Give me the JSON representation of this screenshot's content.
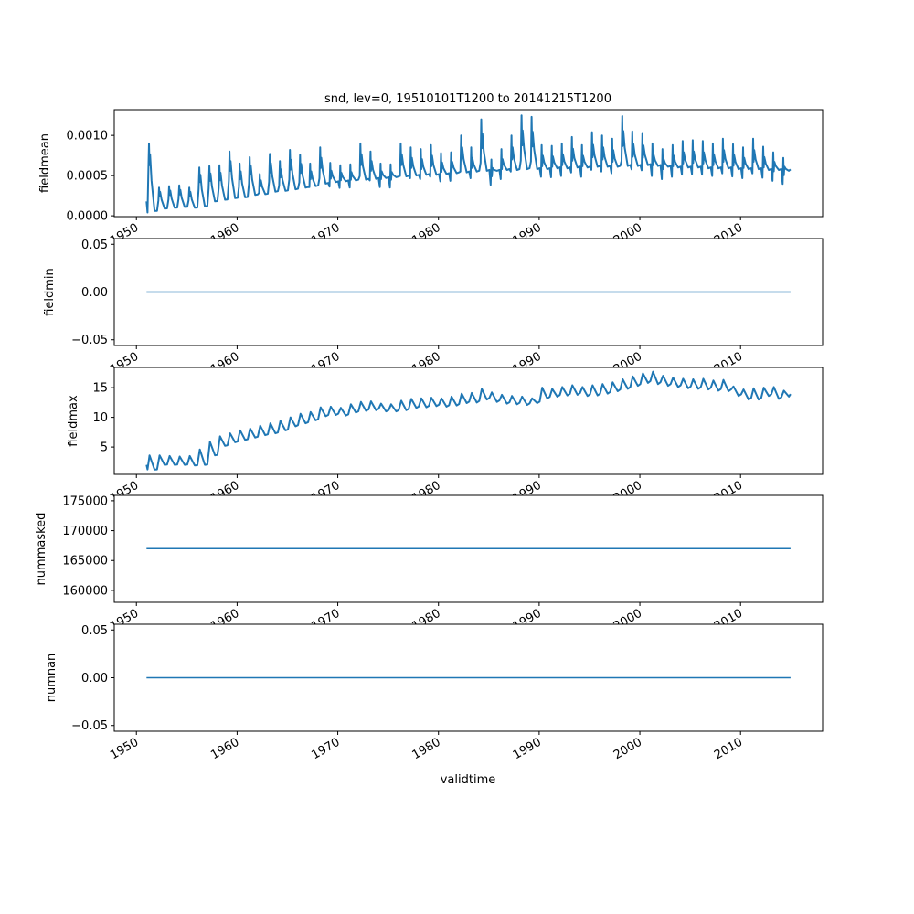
{
  "chart_data": {
    "type": "line",
    "title": "snd, lev=0, 19510101T1200 to 20141215T1200",
    "xlabel": "validtime",
    "x_range": [
      1951.0,
      2014.96
    ],
    "xlim": [
      1947.8,
      2018.15
    ],
    "xticks": [
      1950,
      1960,
      1970,
      1980,
      1990,
      2000,
      2010
    ],
    "line_color": "#1f77b4",
    "panels": [
      {
        "ylabel": "fieldmean",
        "ylim": [
          -1e-05,
          0.00132
        ],
        "yticks": [
          0.0,
          0.0005,
          0.001
        ],
        "ytick_labels": [
          "0.0000",
          "0.0005",
          "0.0010"
        ],
        "years": [
          1951,
          1952,
          1953,
          1954,
          1955,
          1956,
          1957,
          1958,
          1959,
          1960,
          1961,
          1962,
          1963,
          1964,
          1965,
          1966,
          1967,
          1968,
          1969,
          1970,
          1971,
          1972,
          1973,
          1974,
          1975,
          1976,
          1977,
          1978,
          1979,
          1980,
          1981,
          1982,
          1983,
          1984,
          1985,
          1986,
          1987,
          1988,
          1989,
          1990,
          1991,
          1992,
          1993,
          1994,
          1995,
          1996,
          1997,
          1998,
          1999,
          2000,
          2001,
          2002,
          2003,
          2004,
          2005,
          2006,
          2007,
          2008,
          2009,
          2010,
          2011,
          2012,
          2013,
          2014
        ],
        "peak": [
          0.0009,
          0.00035,
          0.00037,
          0.00038,
          0.00035,
          0.0006,
          0.00062,
          0.00063,
          0.0008,
          0.00065,
          0.00073,
          0.00052,
          0.00077,
          0.00068,
          0.00082,
          0.00076,
          0.00065,
          0.00085,
          0.00066,
          0.00063,
          0.00064,
          0.0009,
          0.0008,
          0.00065,
          0.00064,
          0.0009,
          0.00085,
          0.00083,
          0.00088,
          0.00078,
          0.00079,
          0.001,
          0.00085,
          0.0012,
          0.0007,
          0.00083,
          0.001,
          0.00125,
          0.00123,
          0.00088,
          0.00087,
          0.0009,
          0.00098,
          0.00088,
          0.00104,
          0.001,
          0.00096,
          0.00124,
          0.00105,
          0.00103,
          0.0009,
          0.00083,
          0.00088,
          0.00093,
          0.00094,
          0.00093,
          0.0009,
          0.00096,
          0.00089,
          0.00085,
          0.00096,
          0.00086,
          0.00079,
          0.00072
        ],
        "trough": [
          6e-05,
          9e-05,
          0.0001,
          0.00011,
          0.0001,
          0.00012,
          0.00018,
          0.0002,
          0.00022,
          0.00023,
          0.00026,
          0.00027,
          0.0003,
          0.00031,
          0.00033,
          0.00035,
          0.00037,
          0.0004,
          0.00042,
          0.00043,
          0.00044,
          0.00045,
          0.00046,
          0.00047,
          0.00048,
          0.00049,
          0.0005,
          0.00051,
          0.00051,
          0.00052,
          0.00053,
          0.00054,
          0.00055,
          0.00056,
          0.00056,
          0.00057,
          0.00057,
          0.00058,
          0.00058,
          0.00058,
          0.00059,
          0.00059,
          0.0006,
          0.0006,
          0.00061,
          0.00061,
          0.00061,
          0.00062,
          0.00062,
          0.00063,
          0.00062,
          0.00061,
          0.0006,
          0.0006,
          0.0006,
          0.00059,
          0.00059,
          0.00059,
          0.00058,
          0.00058,
          0.00058,
          0.00057,
          0.00057,
          0.00056
        ]
      },
      {
        "ylabel": "fieldmin",
        "ylim": [
          -0.056,
          0.056
        ],
        "yticks": [
          -0.05,
          0.0,
          0.05
        ],
        "ytick_labels": [
          "−0.05",
          "0.00",
          "0.05"
        ],
        "constant": 0.0
      },
      {
        "ylabel": "fieldmax",
        "ylim": [
          0.4,
          18.4
        ],
        "yticks": [
          5,
          10,
          15
        ],
        "ytick_labels": [
          "5",
          "10",
          "15"
        ],
        "years": [
          1951,
          1952,
          1953,
          1954,
          1955,
          1956,
          1957,
          1958,
          1959,
          1960,
          1961,
          1962,
          1963,
          1964,
          1965,
          1966,
          1967,
          1968,
          1969,
          1970,
          1971,
          1972,
          1973,
          1974,
          1975,
          1976,
          1977,
          1978,
          1979,
          1980,
          1981,
          1982,
          1983,
          1984,
          1985,
          1986,
          1987,
          1988,
          1989,
          1990,
          1991,
          1992,
          1993,
          1994,
          1995,
          1996,
          1997,
          1998,
          1999,
          2000,
          2001,
          2002,
          2003,
          2004,
          2005,
          2006,
          2007,
          2008,
          2009,
          2010,
          2011,
          2012,
          2013,
          2014
        ],
        "peak": [
          3.6,
          3.6,
          3.5,
          3.4,
          3.5,
          4.6,
          5.9,
          6.8,
          7.3,
          7.8,
          8.1,
          8.6,
          9.0,
          9.4,
          10.0,
          10.6,
          10.9,
          11.7,
          11.8,
          11.6,
          12.2,
          12.6,
          12.7,
          12.3,
          12.2,
          12.8,
          13.1,
          13.2,
          13.3,
          13.2,
          13.5,
          14.0,
          14.1,
          14.8,
          14.2,
          13.8,
          13.6,
          13.5,
          13.2,
          15.0,
          14.8,
          15.1,
          15.4,
          15.1,
          15.4,
          15.6,
          15.9,
          16.4,
          16.9,
          17.4,
          17.7,
          17.0,
          16.7,
          16.5,
          16.4,
          16.5,
          16.2,
          16.3,
          15.2,
          14.7,
          14.9,
          15.0,
          15.1,
          14.5
        ],
        "trough": [
          1.2,
          2.0,
          2.0,
          2.0,
          1.9,
          2.0,
          3.6,
          5.2,
          5.8,
          6.2,
          6.6,
          7.0,
          7.3,
          7.8,
          8.5,
          9.0,
          9.5,
          10.2,
          10.4,
          10.3,
          10.8,
          11.1,
          11.2,
          11.0,
          11.0,
          11.2,
          11.6,
          11.7,
          11.9,
          11.8,
          12.0,
          12.4,
          12.5,
          13.0,
          12.6,
          12.3,
          12.2,
          12.1,
          12.4,
          13.2,
          13.5,
          13.7,
          13.8,
          13.6,
          13.7,
          14.0,
          14.4,
          14.8,
          15.3,
          15.8,
          15.6,
          15.3,
          15.1,
          14.9,
          14.8,
          14.7,
          14.5,
          14.4,
          13.6,
          13.0,
          13.0,
          13.6,
          13.1,
          13.5
        ]
      },
      {
        "ylabel": "nummasked",
        "ylim": [
          158000,
          175900
        ],
        "yticks": [
          160000,
          165000,
          170000,
          175000
        ],
        "ytick_labels": [
          "160000",
          "165000",
          "170000",
          "175000"
        ],
        "constant": 167000
      },
      {
        "ylabel": "numnan",
        "ylim": [
          -0.056,
          0.056
        ],
        "yticks": [
          -0.05,
          0.0,
          0.05
        ],
        "ytick_labels": [
          "−0.05",
          "0.00",
          "0.05"
        ],
        "constant": 0.0
      }
    ]
  }
}
